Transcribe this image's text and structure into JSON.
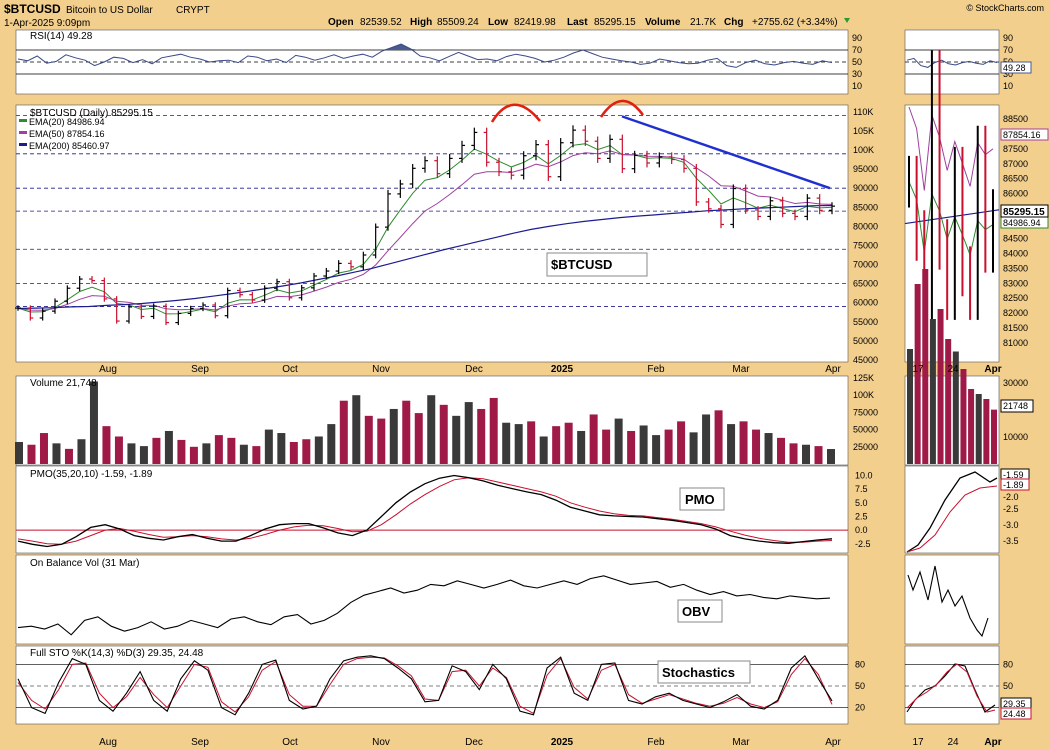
{
  "header": {
    "symbol": "$BTCUSD",
    "name": "Bitcoin to US Dollar",
    "exchange": "CRYPT",
    "date": "1-Apr-2025 9:09pm",
    "copyright": "© StockCharts.com",
    "open_label": "Open",
    "open": "82539.52",
    "high_label": "High",
    "high": "85509.24",
    "low_label": "Low",
    "low": "82419.98",
    "last_label": "Last",
    "last": "85295.15",
    "volume_label": "Volume",
    "volume": "21.7K",
    "chg_label": "Chg",
    "chg": "+2755.62 (+3.34%)"
  },
  "colors": {
    "background": "#f3cf8e",
    "panel": "#ffffff",
    "up": "#000000",
    "down": "#c8102e",
    "volume_up": "#3a3a3a",
    "volume_down": "#a01a48",
    "ema20": "#2e8b2e",
    "ema50": "#a040a0",
    "ema200": "#1c1c90",
    "trendline": "#1f2fd0",
    "annotation": "#e02010",
    "rsi_fill": "#4a5a90"
  },
  "x_axis": {
    "months": [
      "Aug",
      "Sep",
      "Oct",
      "Nov",
      "Dec",
      "2025",
      "Feb",
      "Mar",
      "Apr"
    ],
    "mini_labels": [
      "17",
      "24",
      "Apr"
    ]
  },
  "chart_data": [
    {
      "type": "line",
      "panel": "rsi",
      "title": "RSI(14) 49.28",
      "y_ticks": [
        "90",
        "70",
        "50",
        "30",
        "10"
      ],
      "ylim": [
        0,
        100
      ],
      "last_value_label": "49.28",
      "series": [
        {
          "values": [
            55,
            52,
            60,
            48,
            51,
            62,
            57,
            53,
            44,
            50,
            58,
            56,
            49,
            54,
            47,
            57,
            60,
            63,
            58,
            55,
            50,
            52,
            53,
            49,
            60,
            58,
            52,
            55,
            49,
            61,
            58,
            53,
            57,
            62,
            56,
            60,
            63,
            58,
            68,
            74,
            80,
            72,
            60,
            57,
            52,
            59,
            66,
            60,
            54,
            55,
            52,
            59,
            63,
            60,
            56,
            50,
            53,
            58,
            65,
            70,
            64,
            58,
            55,
            52,
            50,
            46,
            48,
            55,
            52,
            49,
            47,
            48,
            53,
            56,
            44,
            41,
            49,
            53,
            47,
            45,
            49,
            51,
            48,
            46,
            52,
            49
          ]
        }
      ]
    },
    {
      "type": "line",
      "panel": "price",
      "title": "$BTCUSD (Daily) 85295.15",
      "y_ticks": [
        "110K",
        "105K",
        "100K",
        "95000",
        "90000",
        "85000",
        "80000",
        "75000",
        "70000",
        "65000",
        "60000",
        "55000",
        "50000",
        "45000"
      ],
      "ylim": [
        45000,
        111000
      ],
      "legend": [
        {
          "name": "EMA(20) 84986.94",
          "color": "#2e8b2e"
        },
        {
          "name": "EMA(50) 87854.16",
          "color": "#a040a0"
        },
        {
          "name": "EMA(200) 85460.97",
          "color": "#1c1c90"
        }
      ],
      "price_tag": "85295.15",
      "mini_y_ticks": [
        "88500",
        "88000",
        "87500",
        "87000",
        "86500",
        "86000",
        "85500",
        "85000",
        "84500",
        "84000",
        "83500",
        "83000",
        "82500",
        "82000",
        "81500",
        "81000"
      ],
      "mini_tags": [
        "87854.16",
        "85295.15",
        "84986.94"
      ],
      "annotation_label": "$BTCUSD",
      "series": [
        {
          "name": "Close",
          "values": [
            58600,
            56000,
            57800,
            60400,
            63800,
            66200,
            65800,
            61000,
            55200,
            58900,
            56400,
            59100,
            54800,
            57200,
            58500,
            59400,
            56600,
            63200,
            62100,
            60700,
            63800,
            65500,
            61300,
            63900,
            67000,
            68300,
            70300,
            69400,
            72500,
            79800,
            88500,
            91100,
            95200,
            97200,
            93800,
            97800,
            101200,
            104600,
            96800,
            94300,
            93400,
            98500,
            101400,
            93000,
            101900,
            105200,
            102300,
            97800,
            102800,
            95100,
            98600,
            96600,
            98200,
            97500,
            95200,
            86400,
            84600,
            80500,
            89900,
            84300,
            82600,
            86700,
            83400,
            82600,
            87400,
            84200,
            85295
          ]
        },
        {
          "name": "EMA(200)",
          "values": [
            58500,
            58600,
            58700,
            58900,
            59000,
            59300,
            59500,
            59800,
            60200,
            60600,
            61100,
            61700,
            62300,
            63000,
            63700,
            64400,
            65200,
            66100,
            67000,
            68000,
            69000,
            70200,
            71400,
            72600,
            73800,
            74900,
            76000,
            77100,
            78200,
            79200,
            80000,
            80700,
            81300,
            81800,
            82300,
            82700,
            83000,
            83400,
            83700,
            84100,
            84300,
            84600,
            84800,
            85000,
            85200,
            85400,
            85460
          ]
        }
      ]
    },
    {
      "type": "bar",
      "panel": "volume",
      "title": "Volume 21,748",
      "y_ticks": [
        "125K",
        "100K",
        "75000",
        "50000",
        "25000"
      ],
      "ylim": [
        0,
        125000
      ],
      "last_value_label": "21748",
      "mini_y_ticks": [
        "30000",
        "20000",
        "10000"
      ],
      "series": [
        {
          "values": [
            32000,
            28000,
            45000,
            30000,
            22000,
            36000,
            120000,
            55000,
            40000,
            30000,
            26000,
            38000,
            48000,
            35000,
            25000,
            30000,
            42000,
            38000,
            28000,
            26000,
            50000,
            45000,
            32000,
            36000,
            40000,
            58000,
            92000,
            100000,
            70000,
            66000,
            80000,
            92000,
            74000,
            100000,
            86000,
            70000,
            90000,
            80000,
            96000,
            60000,
            58000,
            62000,
            40000,
            55000,
            60000,
            48000,
            72000,
            50000,
            66000,
            48000,
            56000,
            42000,
            50000,
            62000,
            46000,
            72000,
            78000,
            58000,
            62000,
            50000,
            45000,
            38000,
            30000,
            28000,
            26000,
            21748
          ]
        }
      ]
    },
    {
      "type": "line",
      "panel": "pmo",
      "title": "PMO(35,20,10) -1.59, -1.89",
      "y_ticks": [
        "10.0",
        "7.5",
        "5.0",
        "2.5",
        "0.0",
        "-2.5"
      ],
      "ylim": [
        -4,
        11
      ],
      "annotation_label": "PMO",
      "mini_y_ticks": [
        "-1.59",
        "-1.89",
        "-2.0",
        "-2.5",
        "-3.0",
        "-3.5"
      ],
      "series": [
        {
          "name": "PMO",
          "values": [
            -2.0,
            -2.6,
            -3.0,
            -2.6,
            -1.2,
            0.5,
            1.0,
            0.2,
            -1.0,
            -1.5,
            -1.8,
            -1.2,
            -0.8,
            -1.5,
            -2.0,
            -2.0,
            -1.0,
            0.2,
            1.0,
            1.2,
            1.2,
            0.4,
            -0.5,
            -1.0,
            0.0,
            2.5,
            5.0,
            7.0,
            8.5,
            9.5,
            10.0,
            9.6,
            9.0,
            8.2,
            7.6,
            7.0,
            6.5,
            5.5,
            4.2,
            3.5,
            2.8,
            2.6,
            2.5,
            2.4,
            2.1,
            1.8,
            1.4,
            1.0,
            0.2,
            -1.0,
            -1.6,
            -2.0,
            -2.3,
            -2.4,
            -2.1,
            -1.8,
            -1.59
          ]
        },
        {
          "name": "Signal",
          "values": [
            -1.6,
            -2.0,
            -2.5,
            -2.6,
            -2.0,
            -1.0,
            0.0,
            0.3,
            -0.2,
            -0.8,
            -1.3,
            -1.2,
            -1.0,
            -1.2,
            -1.6,
            -1.8,
            -1.5,
            -0.8,
            0.0,
            0.6,
            0.9,
            0.8,
            0.3,
            -0.3,
            -0.2,
            1.0,
            2.8,
            4.8,
            6.5,
            8.0,
            9.2,
            9.6,
            9.4,
            8.8,
            8.2,
            7.6,
            7.0,
            6.2,
            5.0,
            4.2,
            3.5,
            3.0,
            2.7,
            2.6,
            2.3,
            2.0,
            1.6,
            1.2,
            0.6,
            -0.2,
            -0.9,
            -1.5,
            -1.9,
            -2.2,
            -2.2,
            -2.0,
            -1.89
          ]
        }
      ]
    },
    {
      "type": "line",
      "panel": "obv",
      "title": "On Balance Vol (31 Mar)",
      "annotation_label": "OBV",
      "series": [
        {
          "values": [
            40,
            42,
            38,
            45,
            30,
            50,
            55,
            42,
            35,
            40,
            48,
            38,
            42,
            50,
            45,
            40,
            52,
            55,
            48,
            44,
            55,
            58,
            45,
            50,
            60,
            75,
            85,
            90,
            95,
            88,
            92,
            100,
            98,
            105,
            100,
            95,
            100,
            106,
            98,
            95,
            100,
            105,
            100,
            108,
            112,
            106,
            100,
            102,
            104,
            96,
            100,
            92,
            86,
            90,
            84,
            86,
            82,
            80,
            84,
            82,
            80,
            81
          ]
        }
      ]
    },
    {
      "type": "line",
      "panel": "stochastics",
      "title": "Full STO %K(14,3) %D(3) 29.35, 24.48",
      "y_ticks": [
        "80",
        "50",
        "20"
      ],
      "ylim": [
        0,
        100
      ],
      "annotation_label": "Stochastics",
      "mini_tags": [
        "29.35",
        "24.48"
      ],
      "series": [
        {
          "name": "%K",
          "values": [
            60,
            20,
            12,
            55,
            88,
            80,
            30,
            15,
            40,
            70,
            30,
            15,
            60,
            85,
            72,
            20,
            10,
            40,
            80,
            86,
            30,
            18,
            22,
            60,
            85,
            90,
            92,
            88,
            75,
            60,
            28,
            30,
            78,
            70,
            45,
            80,
            60,
            15,
            10,
            75,
            90,
            40,
            30,
            80,
            82,
            30,
            25,
            35,
            40,
            30,
            25,
            20,
            28,
            38,
            22,
            18,
            30,
            75,
            92,
            60,
            29.35
          ]
        },
        {
          "name": "%D",
          "values": [
            55,
            30,
            18,
            45,
            80,
            82,
            40,
            20,
            35,
            62,
            38,
            20,
            50,
            80,
            76,
            28,
            14,
            35,
            72,
            84,
            38,
            22,
            22,
            52,
            80,
            88,
            90,
            89,
            78,
            64,
            32,
            30,
            70,
            72,
            50,
            75,
            62,
            22,
            12,
            65,
            88,
            48,
            32,
            72,
            80,
            38,
            26,
            32,
            38,
            32,
            26,
            22,
            26,
            34,
            25,
            20,
            28,
            66,
            88,
            66,
            24.48
          ]
        }
      ]
    }
  ]
}
